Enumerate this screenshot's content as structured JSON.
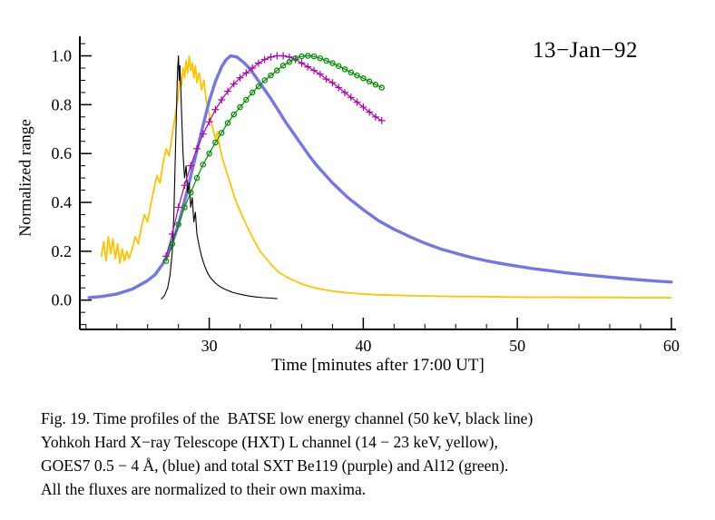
{
  "chart_data": {
    "type": "line",
    "title": "13−Jan−92",
    "xlabel": "Time [minutes after 17:00 UT]",
    "ylabel": "Normalized range",
    "xlim": [
      21.6,
      60.3
    ],
    "ylim": [
      -0.12,
      1.08
    ],
    "xticks": [
      30,
      40,
      50,
      60
    ],
    "yticks": [
      0.0,
      0.2,
      0.4,
      0.6,
      0.8,
      1.0
    ],
    "x_minor_step": 2,
    "y_minor_step": 0.05,
    "grid": false,
    "legend_position": "none (series identified in caption)",
    "series": [
      {
        "name": "Yohkoh HXT L channel (14-23 keV)",
        "color": "#FFC400",
        "width": 1.8,
        "marker": "none",
        "points": [
          [
            23.0,
            0.18
          ],
          [
            23.15,
            0.24
          ],
          [
            23.3,
            0.16
          ],
          [
            23.45,
            0.26
          ],
          [
            23.6,
            0.19
          ],
          [
            23.75,
            0.25
          ],
          [
            23.9,
            0.17
          ],
          [
            24.05,
            0.23
          ],
          [
            24.2,
            0.15
          ],
          [
            24.35,
            0.21
          ],
          [
            24.5,
            0.16
          ],
          [
            24.65,
            0.2
          ],
          [
            24.8,
            0.17
          ],
          [
            25.0,
            0.21
          ],
          [
            25.2,
            0.26
          ],
          [
            25.4,
            0.23
          ],
          [
            25.6,
            0.3
          ],
          [
            25.8,
            0.35
          ],
          [
            26.0,
            0.32
          ],
          [
            26.2,
            0.39
          ],
          [
            26.4,
            0.45
          ],
          [
            26.6,
            0.51
          ],
          [
            26.8,
            0.48
          ],
          [
            27.0,
            0.56
          ],
          [
            27.2,
            0.62
          ],
          [
            27.4,
            0.59
          ],
          [
            27.6,
            0.68
          ],
          [
            27.8,
            0.76
          ],
          [
            28.0,
            0.84
          ],
          [
            28.1,
            0.92
          ],
          [
            28.2,
            0.88
          ],
          [
            28.3,
            0.95
          ],
          [
            28.4,
            0.91
          ],
          [
            28.5,
            0.98
          ],
          [
            28.6,
            0.93
          ],
          [
            28.7,
            1.0
          ],
          [
            28.8,
            0.94
          ],
          [
            28.9,
            0.97
          ],
          [
            29.0,
            0.91
          ],
          [
            29.1,
            0.96
          ],
          [
            29.2,
            0.89
          ],
          [
            29.35,
            0.93
          ],
          [
            29.5,
            0.86
          ],
          [
            29.65,
            0.9
          ],
          [
            29.8,
            0.82
          ],
          [
            30.0,
            0.76
          ],
          [
            30.2,
            0.71
          ],
          [
            30.4,
            0.66
          ],
          [
            30.55,
            0.69
          ],
          [
            30.7,
            0.62
          ],
          [
            30.9,
            0.57
          ],
          [
            31.1,
            0.53
          ],
          [
            31.3,
            0.49
          ],
          [
            31.5,
            0.45
          ],
          [
            31.7,
            0.41
          ],
          [
            31.9,
            0.38
          ],
          [
            32.1,
            0.35
          ],
          [
            32.4,
            0.31
          ],
          [
            32.7,
            0.27
          ],
          [
            33.0,
            0.235
          ],
          [
            33.3,
            0.2
          ],
          [
            33.7,
            0.17
          ],
          [
            34.1,
            0.14
          ],
          [
            34.5,
            0.115
          ],
          [
            35.0,
            0.095
          ],
          [
            35.5,
            0.08
          ],
          [
            36.0,
            0.066
          ],
          [
            36.5,
            0.056
          ],
          [
            37.0,
            0.048
          ],
          [
            37.5,
            0.042
          ],
          [
            38.0,
            0.037
          ],
          [
            38.5,
            0.033
          ],
          [
            39.0,
            0.03
          ],
          [
            39.5,
            0.027
          ],
          [
            40.0,
            0.025
          ],
          [
            41.0,
            0.022
          ],
          [
            42.0,
            0.02
          ],
          [
            43.0,
            0.018
          ],
          [
            44.0,
            0.017
          ],
          [
            45.0,
            0.016
          ],
          [
            46.0,
            0.015
          ],
          [
            47.5,
            0.014
          ],
          [
            49.0,
            0.013
          ],
          [
            50.5,
            0.012
          ],
          [
            52.0,
            0.012
          ],
          [
            54.0,
            0.011
          ],
          [
            56.0,
            0.011
          ],
          [
            58.0,
            0.01
          ],
          [
            60.0,
            0.01
          ]
        ]
      },
      {
        "name": "GOES7 0.5-4 A",
        "color": "#7376E6",
        "width": 3.4,
        "marker": "none",
        "points": [
          [
            22.2,
            0.01
          ],
          [
            23.0,
            0.015
          ],
          [
            24.0,
            0.025
          ],
          [
            25.0,
            0.045
          ],
          [
            26.0,
            0.08
          ],
          [
            26.5,
            0.105
          ],
          [
            27.0,
            0.15
          ],
          [
            27.5,
            0.215
          ],
          [
            28.0,
            0.31
          ],
          [
            28.5,
            0.43
          ],
          [
            29.0,
            0.56
          ],
          [
            29.5,
            0.69
          ],
          [
            30.0,
            0.815
          ],
          [
            30.4,
            0.895
          ],
          [
            30.8,
            0.955
          ],
          [
            31.1,
            0.985
          ],
          [
            31.4,
            1.0
          ],
          [
            31.8,
            0.995
          ],
          [
            32.2,
            0.975
          ],
          [
            32.6,
            0.95
          ],
          [
            33.0,
            0.915
          ],
          [
            33.5,
            0.87
          ],
          [
            34.0,
            0.825
          ],
          [
            34.5,
            0.775
          ],
          [
            35.0,
            0.725
          ],
          [
            35.5,
            0.68
          ],
          [
            36.0,
            0.635
          ],
          [
            36.5,
            0.59
          ],
          [
            37.0,
            0.55
          ],
          [
            37.5,
            0.515
          ],
          [
            38.0,
            0.48
          ],
          [
            38.5,
            0.45
          ],
          [
            39.0,
            0.42
          ],
          [
            39.5,
            0.395
          ],
          [
            40.0,
            0.37
          ],
          [
            41.0,
            0.325
          ],
          [
            42.0,
            0.29
          ],
          [
            43.0,
            0.26
          ],
          [
            44.0,
            0.233
          ],
          [
            45.0,
            0.21
          ],
          [
            46.0,
            0.192
          ],
          [
            47.0,
            0.175
          ],
          [
            48.0,
            0.161
          ],
          [
            49.0,
            0.149
          ],
          [
            50.0,
            0.139
          ],
          [
            51.0,
            0.129
          ],
          [
            52.0,
            0.121
          ],
          [
            53.0,
            0.113
          ],
          [
            54.0,
            0.106
          ],
          [
            55.0,
            0.1
          ],
          [
            56.0,
            0.094
          ],
          [
            57.0,
            0.088
          ],
          [
            58.0,
            0.083
          ],
          [
            59.0,
            0.078
          ],
          [
            60.0,
            0.074
          ]
        ]
      },
      {
        "name": "BATSE low energy channel (50 keV)",
        "color": "#000000",
        "width": 1.1,
        "marker": "none",
        "points": [
          [
            26.9,
            0.005
          ],
          [
            27.1,
            0.02
          ],
          [
            27.3,
            0.05
          ],
          [
            27.45,
            0.1
          ],
          [
            27.6,
            0.2
          ],
          [
            27.7,
            0.35
          ],
          [
            27.8,
            0.6
          ],
          [
            27.9,
            0.85
          ],
          [
            27.95,
            0.95
          ],
          [
            28.0,
            1.0
          ],
          [
            28.05,
            0.9
          ],
          [
            28.1,
            0.96
          ],
          [
            28.15,
            0.88
          ],
          [
            28.2,
            0.78
          ],
          [
            28.3,
            0.6
          ],
          [
            28.4,
            0.5
          ],
          [
            28.5,
            0.55
          ],
          [
            28.6,
            0.44
          ],
          [
            28.7,
            0.48
          ],
          [
            28.8,
            0.38
          ],
          [
            28.9,
            0.42
          ],
          [
            29.0,
            0.32
          ],
          [
            29.1,
            0.36
          ],
          [
            29.2,
            0.27
          ],
          [
            29.35,
            0.22
          ],
          [
            29.5,
            0.18
          ],
          [
            29.7,
            0.14
          ],
          [
            29.9,
            0.11
          ],
          [
            30.1,
            0.09
          ],
          [
            30.4,
            0.07
          ],
          [
            30.7,
            0.055
          ],
          [
            31.0,
            0.045
          ],
          [
            31.5,
            0.032
          ],
          [
            32.0,
            0.024
          ],
          [
            32.5,
            0.018
          ],
          [
            33.0,
            0.013
          ],
          [
            33.5,
            0.01
          ],
          [
            34.0,
            0.008
          ],
          [
            34.4,
            0.006
          ]
        ]
      },
      {
        "name": "SXT Be119",
        "color": "#B000B0",
        "width": 1.2,
        "marker": "plus",
        "points": [
          [
            27.2,
            0.18
          ],
          [
            27.6,
            0.27
          ],
          [
            28.0,
            0.38
          ],
          [
            28.4,
            0.47
          ],
          [
            28.8,
            0.55
          ],
          [
            29.2,
            0.62
          ],
          [
            29.6,
            0.68
          ],
          [
            30.0,
            0.73
          ],
          [
            30.4,
            0.78
          ],
          [
            30.8,
            0.82
          ],
          [
            31.2,
            0.855
          ],
          [
            31.6,
            0.885
          ],
          [
            32.0,
            0.91
          ],
          [
            32.4,
            0.93
          ],
          [
            32.8,
            0.95
          ],
          [
            33.2,
            0.97
          ],
          [
            33.6,
            0.985
          ],
          [
            34.0,
            0.995
          ],
          [
            34.4,
            1.0
          ],
          [
            34.8,
            1.0
          ],
          [
            35.2,
            0.995
          ],
          [
            35.6,
            0.985
          ],
          [
            36.0,
            0.97
          ],
          [
            36.4,
            0.955
          ],
          [
            36.8,
            0.94
          ],
          [
            37.2,
            0.925
          ],
          [
            37.6,
            0.905
          ],
          [
            38.0,
            0.89
          ],
          [
            38.4,
            0.87
          ],
          [
            38.8,
            0.85
          ],
          [
            39.2,
            0.83
          ],
          [
            39.6,
            0.81
          ],
          [
            40.0,
            0.79
          ],
          [
            40.4,
            0.77
          ],
          [
            40.8,
            0.75
          ],
          [
            41.2,
            0.735
          ]
        ]
      },
      {
        "name": "SXT Al12",
        "color": "#009000",
        "width": 1.2,
        "marker": "circle",
        "points": [
          [
            27.2,
            0.16
          ],
          [
            27.6,
            0.23
          ],
          [
            28.0,
            0.31
          ],
          [
            28.4,
            0.38
          ],
          [
            28.8,
            0.44
          ],
          [
            29.2,
            0.5
          ],
          [
            29.6,
            0.555
          ],
          [
            30.0,
            0.6
          ],
          [
            30.4,
            0.645
          ],
          [
            30.8,
            0.685
          ],
          [
            31.2,
            0.725
          ],
          [
            31.6,
            0.76
          ],
          [
            32.0,
            0.79
          ],
          [
            32.4,
            0.82
          ],
          [
            32.8,
            0.85
          ],
          [
            33.2,
            0.875
          ],
          [
            33.6,
            0.9
          ],
          [
            34.0,
            0.92
          ],
          [
            34.4,
            0.94
          ],
          [
            34.8,
            0.96
          ],
          [
            35.2,
            0.975
          ],
          [
            35.6,
            0.99
          ],
          [
            36.0,
            0.998
          ],
          [
            36.4,
            1.0
          ],
          [
            36.8,
            0.998
          ],
          [
            37.2,
            0.99
          ],
          [
            37.6,
            0.98
          ],
          [
            38.0,
            0.97
          ],
          [
            38.4,
            0.958
          ],
          [
            38.8,
            0.945
          ],
          [
            39.2,
            0.932
          ],
          [
            39.6,
            0.92
          ],
          [
            40.0,
            0.908
          ],
          [
            40.4,
            0.895
          ],
          [
            40.8,
            0.882
          ],
          [
            41.2,
            0.87
          ]
        ]
      }
    ]
  },
  "caption": {
    "lines": [
      "Fig. 19. Time profiles of the  BATSE low energy channel (50 keV, black line)",
      "Yohkoh Hard X−ray Telescope (HXT) L channel (14 − 23 keV, yellow),",
      "GOES7 0.5 − 4 Å, (blue) and total SXT Be119 (purple) and Al12 (green).",
      "All the fluxes are normalized to their own maxima."
    ]
  }
}
